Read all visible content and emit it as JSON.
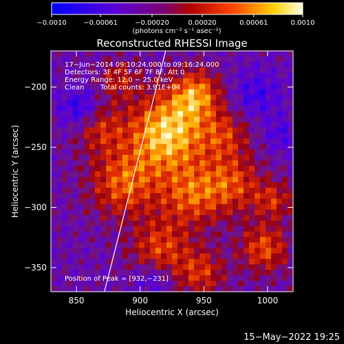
{
  "chart_data": {
    "type": "heatmap",
    "title": "Reconstructed RHESSI Image",
    "xlabel": "Heliocentric X (arcsec)",
    "ylabel": "Heliocentric Y (arcsec)",
    "xlim": [
      830,
      1020
    ],
    "ylim": [
      -370,
      -170
    ],
    "x_ticks": [
      850,
      900,
      950,
      1000
    ],
    "y_ticks": [
      -350,
      -300,
      -250,
      -200
    ],
    "x_tick_labels": [
      "850",
      "900",
      "950",
      "1000"
    ],
    "y_tick_labels": [
      "−350",
      "−300",
      "−250",
      "−200"
    ],
    "colorbar": {
      "range": [
        -0.001,
        0.001
      ],
      "ticks": [
        -0.001,
        -0.00061,
        -0.0002,
        0.0002,
        0.00061,
        0.001
      ],
      "tick_labels": [
        "−0.0010",
        "−0.00061",
        "−0.00020",
        "0.00020",
        "0.00061",
        "0.0010"
      ],
      "unit_label": "(photons cm⁻² s⁻¹ asec⁻²)"
    },
    "annotations": {
      "line1": "17−Jun−2014 09:10:24.000 to 09:16:24.000",
      "line2": "Detectors: 3F 4F 5F 6F 7F 8F, Att 0",
      "line3": "Energy Range: 12.0 − 25.0 keV",
      "line4_a": "Clean",
      "line4_b": "Total counts: 3.91E+04",
      "peak": "Position of Peak = [932,−231]"
    },
    "peak_position": [
      932,
      -231
    ],
    "limb_line": [
      [
        872,
        -370
      ],
      [
        920,
        -170
      ]
    ],
    "footer_date": "15−May−2022 19:25",
    "colors": {
      "background": "#000000",
      "frame": "#ffffff"
    }
  }
}
